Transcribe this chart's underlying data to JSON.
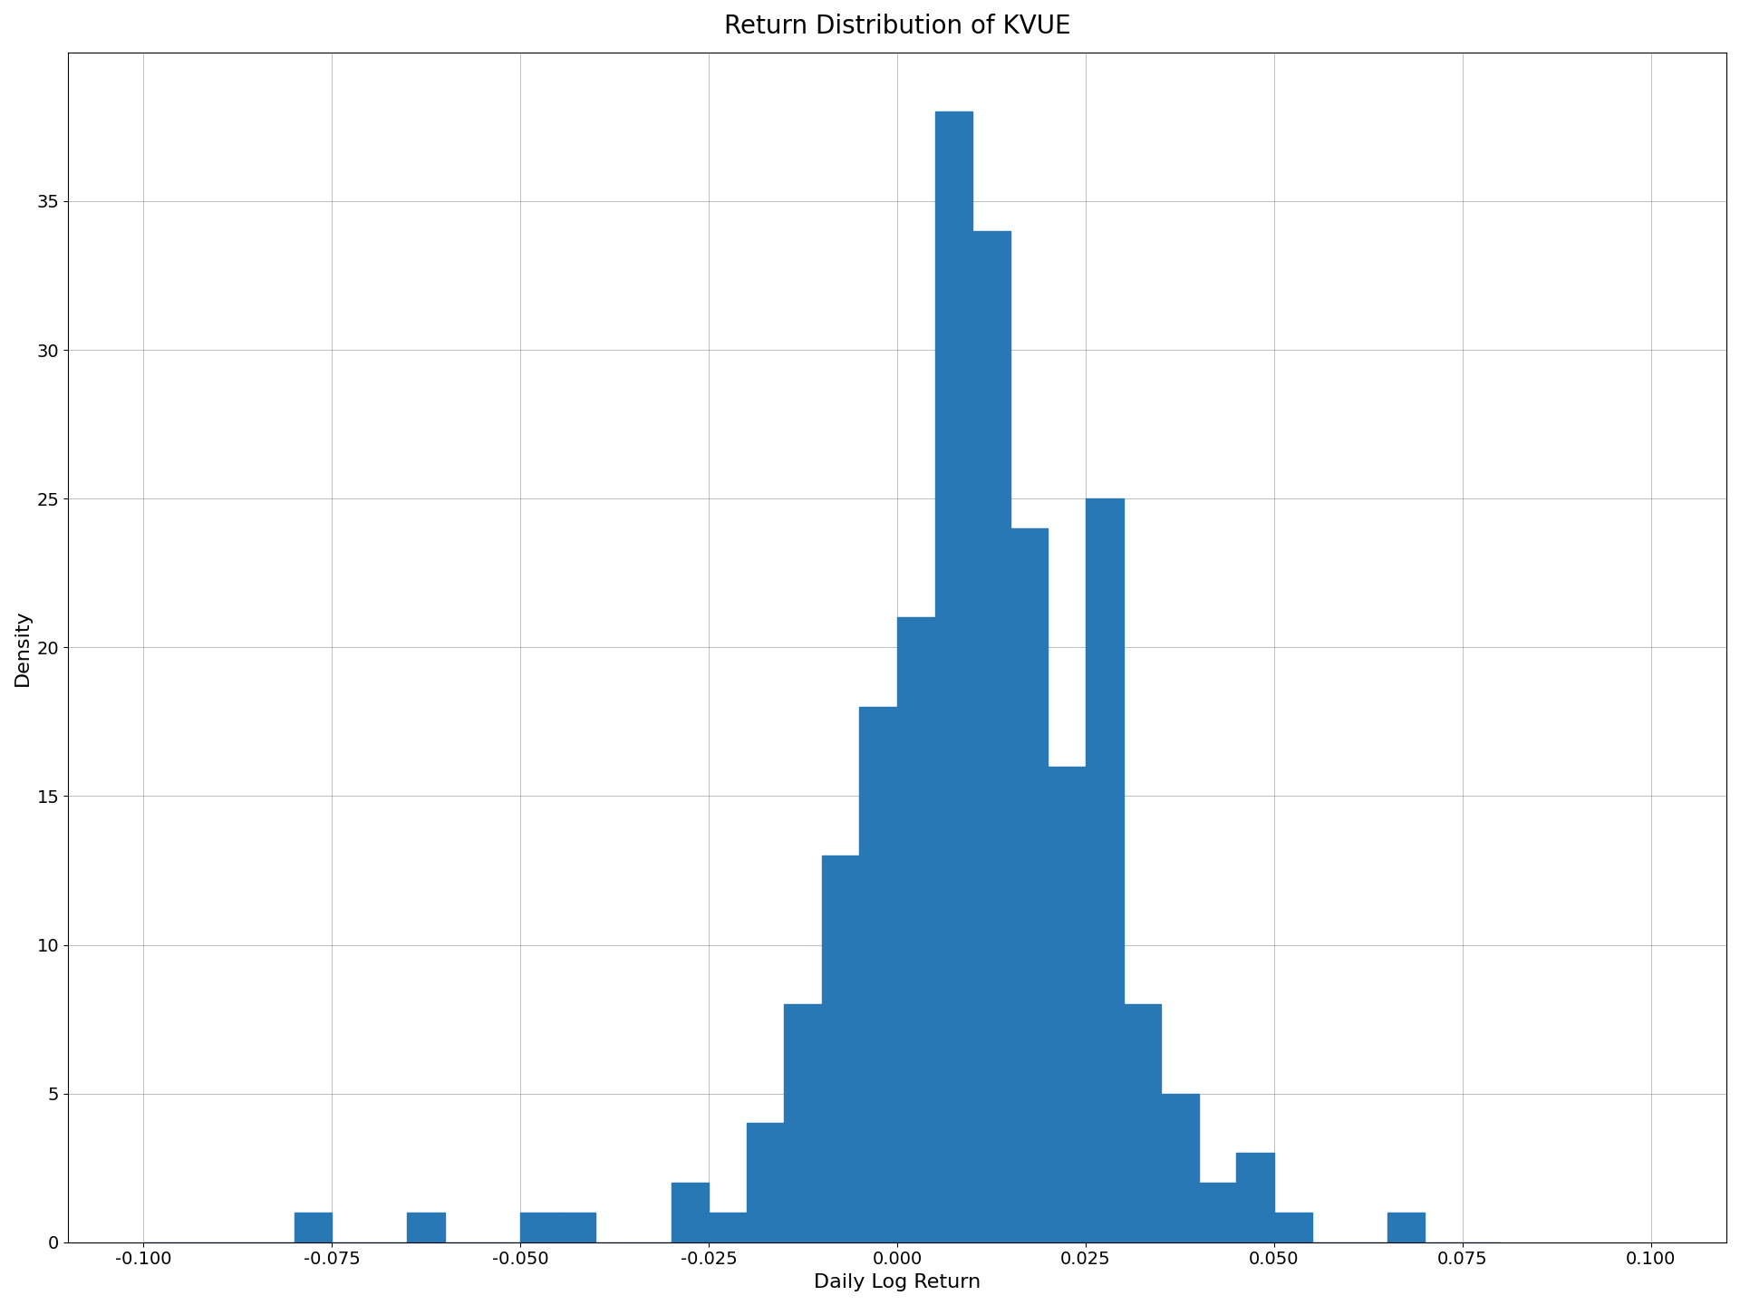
{
  "title": "Return Distribution of KVUE",
  "xlabel": "Daily Log Return",
  "ylabel": "Density",
  "bar_color": "#2878b5",
  "xlim": [
    -0.11,
    0.11
  ],
  "ylim": [
    0,
    40
  ],
  "xticks": [
    -0.1,
    -0.075,
    -0.05,
    -0.025,
    0.0,
    0.025,
    0.05,
    0.075,
    0.1
  ],
  "yticks": [
    0,
    5,
    10,
    15,
    20,
    25,
    30,
    35
  ],
  "bin_edges": [
    -0.1,
    -0.095,
    -0.09,
    -0.085,
    -0.08,
    -0.075,
    -0.07,
    -0.065,
    -0.06,
    -0.055,
    -0.05,
    -0.045,
    -0.04,
    -0.035,
    -0.03,
    -0.025,
    -0.02,
    -0.015,
    -0.01,
    -0.005,
    0.0,
    0.005,
    0.01,
    0.015,
    0.02,
    0.025,
    0.03,
    0.035,
    0.04,
    0.045,
    0.05,
    0.055,
    0.06,
    0.065,
    0.07,
    0.075,
    0.08
  ],
  "bin_heights": [
    0,
    0,
    0,
    0,
    1,
    0,
    0,
    1,
    0,
    0,
    1,
    1,
    0,
    0,
    2,
    1,
    4,
    8,
    13,
    18,
    21,
    38,
    34,
    24,
    16,
    25,
    8,
    5,
    2,
    3,
    1,
    0,
    0,
    1,
    0,
    0
  ],
  "title_fontsize": 20,
  "label_fontsize": 16,
  "tick_fontsize": 14
}
